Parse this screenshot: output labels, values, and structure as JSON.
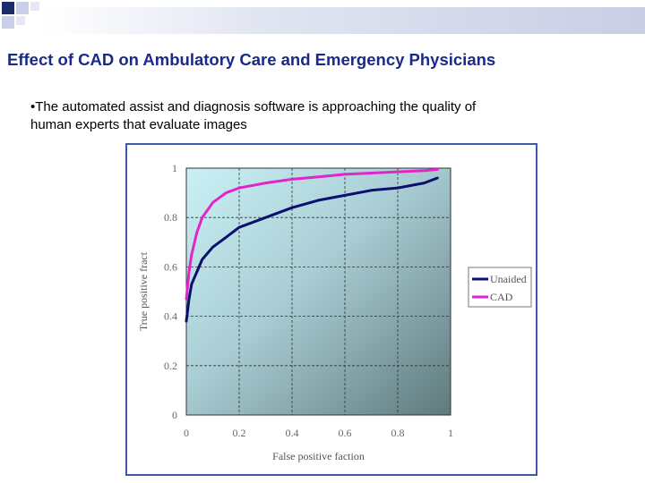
{
  "slide": {
    "title": "Effect of CAD on Ambulatory Care and Emergency Physicians",
    "bullet_line1": "•The automated assist and diagnosis software is approaching the quality of",
    "bullet_line2": "human experts that evaluate images"
  },
  "chart_data": {
    "type": "line",
    "xlabel": "False positive faction",
    "ylabel": "True positive fract",
    "xlim": [
      0,
      1
    ],
    "ylim": [
      0,
      1
    ],
    "x_ticks": [
      "0",
      "0.2",
      "0.4",
      "0.6",
      "0.8",
      "1"
    ],
    "y_ticks": [
      "0",
      "0.2",
      "0.4",
      "0.6",
      "0.8",
      "1"
    ],
    "grid": true,
    "legend_placement": "right-outside",
    "series": [
      {
        "name": "Unaided",
        "color": "#0b0f6e",
        "x": [
          0.0,
          0.01,
          0.02,
          0.04,
          0.06,
          0.1,
          0.15,
          0.2,
          0.25,
          0.3,
          0.4,
          0.5,
          0.6,
          0.7,
          0.8,
          0.9,
          0.95
        ],
        "y": [
          0.38,
          0.47,
          0.53,
          0.58,
          0.63,
          0.68,
          0.72,
          0.76,
          0.78,
          0.8,
          0.84,
          0.87,
          0.89,
          0.91,
          0.92,
          0.94,
          0.96
        ]
      },
      {
        "name": "CAD",
        "color": "#e026c8",
        "x": [
          0.0,
          0.01,
          0.02,
          0.04,
          0.06,
          0.1,
          0.15,
          0.2,
          0.3,
          0.4,
          0.5,
          0.6,
          0.7,
          0.8,
          0.9,
          0.95
        ],
        "y": [
          0.47,
          0.58,
          0.65,
          0.74,
          0.8,
          0.86,
          0.9,
          0.92,
          0.94,
          0.955,
          0.965,
          0.975,
          0.98,
          0.985,
          0.99,
          0.995
        ]
      }
    ]
  }
}
